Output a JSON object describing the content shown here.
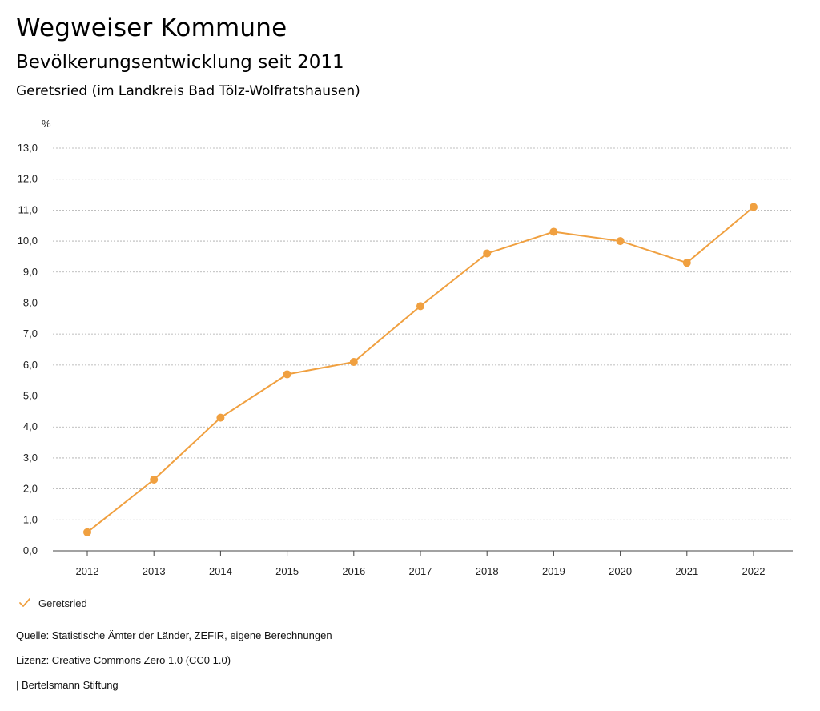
{
  "header": {
    "title": "Wegweiser Kommune",
    "subtitle": "Bevölkerungsentwicklung seit 2011",
    "region": "Geretsried (im Landkreis Bad Tölz-Wolfratshausen)"
  },
  "legend": {
    "label": "Geretsried",
    "icon": "checkmark-icon"
  },
  "footer": {
    "source": "Quelle: Statistische Ämter der Länder, ZEFIR, eigene Berechnungen",
    "license": "Lizenz: Creative Commons Zero 1.0 (CC0 1.0)",
    "brand": "| Bertelsmann Stiftung"
  },
  "colors": {
    "series": "#f0a040",
    "grid": "#aaaaaa"
  },
  "chart_data": {
    "type": "line",
    "title": "Bevölkerungsentwicklung seit 2011",
    "ylabel": "%",
    "xlabel": "",
    "ylim": [
      0,
      13
    ],
    "yticks": [
      "0,0",
      "1,0",
      "2,0",
      "3,0",
      "4,0",
      "5,0",
      "6,0",
      "7,0",
      "8,0",
      "9,0",
      "10,0",
      "11,0",
      "12,0",
      "13,0"
    ],
    "grid": true,
    "legend_position": "bottom-left",
    "categories": [
      "2012",
      "2013",
      "2014",
      "2015",
      "2016",
      "2017",
      "2018",
      "2019",
      "2020",
      "2021",
      "2022"
    ],
    "series": [
      {
        "name": "Geretsried",
        "values": [
          0.6,
          2.3,
          4.3,
          5.7,
          6.1,
          7.9,
          9.6,
          10.3,
          10.0,
          9.3,
          11.1
        ]
      }
    ]
  }
}
